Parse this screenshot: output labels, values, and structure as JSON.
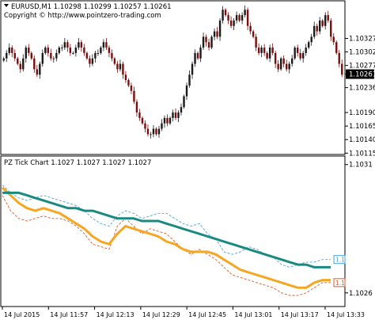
{
  "chart_data": [
    {
      "type": "candlestick",
      "title": "EURUSD,M1  1.10298 1.10299 1.10257 1.10261",
      "copyright": "Copyright © http://www.pointzero-trading.com",
      "menu_icon": "triangle-down-icon",
      "ylim": [
        1.10114,
        1.10395
      ],
      "yticks": [
        "1.10327",
        "1.10302",
        "1.10277",
        "1.10261",
        "1.10236",
        "1.10190",
        "1.10165",
        "1.10140",
        "1.10115"
      ],
      "yticks_values": [
        1.10327,
        1.10302,
        1.10277,
        1.10261,
        1.10236,
        1.1019,
        1.10165,
        1.1014,
        1.10115
      ],
      "current_price": "1.10261",
      "close_series": [
        1.1029,
        1.103,
        1.1031,
        1.103,
        1.1029,
        1.1028,
        1.1027,
        1.1029,
        1.1031,
        1.103,
        1.1029,
        1.1027,
        1.1026,
        1.1028,
        1.103,
        1.1031,
        1.103,
        1.1029,
        1.1029,
        1.103,
        1.1031,
        1.1031,
        1.1032,
        1.1031,
        1.103,
        1.103,
        1.1031,
        1.1032,
        1.1031,
        1.103,
        1.1029,
        1.1028,
        1.1029,
        1.103,
        1.103,
        1.1031,
        1.1032,
        1.1031,
        1.103,
        1.1029,
        1.1028,
        1.1027,
        1.1028,
        1.1026,
        1.1025,
        1.1024,
        1.1023,
        1.1021,
        1.1019,
        1.1018,
        1.1017,
        1.1016,
        1.1015,
        1.1015,
        1.1016,
        1.1015,
        1.1016,
        1.1017,
        1.1018,
        1.1017,
        1.1018,
        1.1019,
        1.1018,
        1.1019,
        1.102,
        1.1022,
        1.1024,
        1.1026,
        1.1028,
        1.103,
        1.1029,
        1.1031,
        1.1033,
        1.1032,
        1.1031,
        1.1033,
        1.1034,
        1.1033,
        1.1036,
        1.1038,
        1.1037,
        1.1036,
        1.1035,
        1.1036,
        1.1037,
        1.1036,
        1.1037,
        1.1038,
        1.1035,
        1.1034,
        1.1033,
        1.1031,
        1.103,
        1.1031,
        1.103,
        1.1029,
        1.1031,
        1.103,
        1.1028,
        1.1027,
        1.1029,
        1.1028,
        1.1027,
        1.1028,
        1.1029,
        1.1031,
        1.103,
        1.1029,
        1.103,
        1.1031,
        1.1032,
        1.1033,
        1.1035,
        1.1034,
        1.1036,
        1.1035,
        1.1037,
        1.1036,
        1.1033,
        1.1032,
        1.103,
        1.1028,
        1.1026
      ]
    },
    {
      "type": "line",
      "title": "PZ Tick Chart 1.1027 1.1027 1.1027 1.1027",
      "yticks": [
        "1.1031",
        "1.1026"
      ],
      "ylim": [
        1.10255,
        1.10313
      ],
      "yticks_values": [
        1.1031,
        1.1026
      ],
      "right_labels": [
        "1.1",
        "1.1"
      ],
      "right_label_colors": [
        "#4aa3df",
        "#e05a2a"
      ],
      "series": [
        {
          "color": "#4aa3df",
          "style": "dashed",
          "values": [
            1.10302,
            1.10299,
            1.10297,
            1.10296,
            1.10297,
            1.10298,
            1.10297,
            1.10296,
            1.10295,
            1.10294,
            1.10292,
            1.10289,
            1.10287,
            1.10286,
            1.1029,
            1.10292,
            1.10291,
            1.10289,
            1.1029,
            1.10291,
            1.10291,
            1.10289,
            1.10287,
            1.10286,
            1.10287,
            1.10283,
            1.10281,
            1.10276,
            1.10275,
            1.10276,
            1.10278,
            1.10277,
            1.10275,
            1.10274,
            1.10271,
            1.1027,
            1.10271,
            1.10272,
            1.10272,
            1.10273,
            1.10273
          ]
        },
        {
          "color": "#e05a2a",
          "style": "dashed",
          "values": [
            1.10298,
            1.10292,
            1.10289,
            1.10288,
            1.10289,
            1.1029,
            1.10289,
            1.10289,
            1.10288,
            1.10286,
            1.10283,
            1.10279,
            1.10278,
            1.10277,
            1.10286,
            1.10289,
            1.10286,
            1.10283,
            1.10285,
            1.10284,
            1.10283,
            1.1028,
            1.10277,
            1.10275,
            1.10277,
            1.10275,
            1.10273,
            1.1027,
            1.10267,
            1.10266,
            1.10265,
            1.10264,
            1.10263,
            1.10262,
            1.1026,
            1.10259,
            1.10259,
            1.1026,
            1.10262,
            1.10264,
            1.10264
          ]
        },
        {
          "color": "#f5a623",
          "style": "solid",
          "values": [
            1.10301,
            1.10298,
            1.10295,
            1.10293,
            1.10292,
            1.10293,
            1.10292,
            1.10291,
            1.10289,
            1.10287,
            1.10285,
            1.10282,
            1.1028,
            1.10279,
            1.10283,
            1.10286,
            1.10285,
            1.10284,
            1.10283,
            1.10282,
            1.1028,
            1.10279,
            1.10277,
            1.10276,
            1.10276,
            1.10276,
            1.10275,
            1.10273,
            1.10271,
            1.10269,
            1.10268,
            1.10267,
            1.10266,
            1.10265,
            1.10264,
            1.10263,
            1.10262,
            1.10262,
            1.10264,
            1.10265,
            1.10265
          ]
        },
        {
          "color": "#1a8a80",
          "style": "solid",
          "values": [
            1.10299,
            1.10299,
            1.10299,
            1.10298,
            1.10297,
            1.10296,
            1.10295,
            1.10294,
            1.10293,
            1.10293,
            1.10292,
            1.10292,
            1.10291,
            1.1029,
            1.10289,
            1.10289,
            1.10289,
            1.10288,
            1.10288,
            1.10288,
            1.10287,
            1.10286,
            1.10285,
            1.10284,
            1.10283,
            1.10282,
            1.10281,
            1.1028,
            1.10279,
            1.10278,
            1.10277,
            1.10276,
            1.10275,
            1.10274,
            1.10273,
            1.10272,
            1.10271,
            1.10271,
            1.1027,
            1.1027,
            1.1027
          ]
        }
      ]
    }
  ],
  "xaxis": {
    "labels": [
      "14 Jul 2015",
      "14 Jul 11:57",
      "14 Jul 12:13",
      "14 Jul 12:29",
      "14 Jul 12:45",
      "14 Jul 13:01",
      "14 Jul 13:17",
      "14 Jul 13:33"
    ]
  },
  "colors": {
    "bull": "#1b1b1b",
    "bear": "#7a0e0e",
    "grid": "#c8c8c8",
    "highlight": "#000000"
  }
}
